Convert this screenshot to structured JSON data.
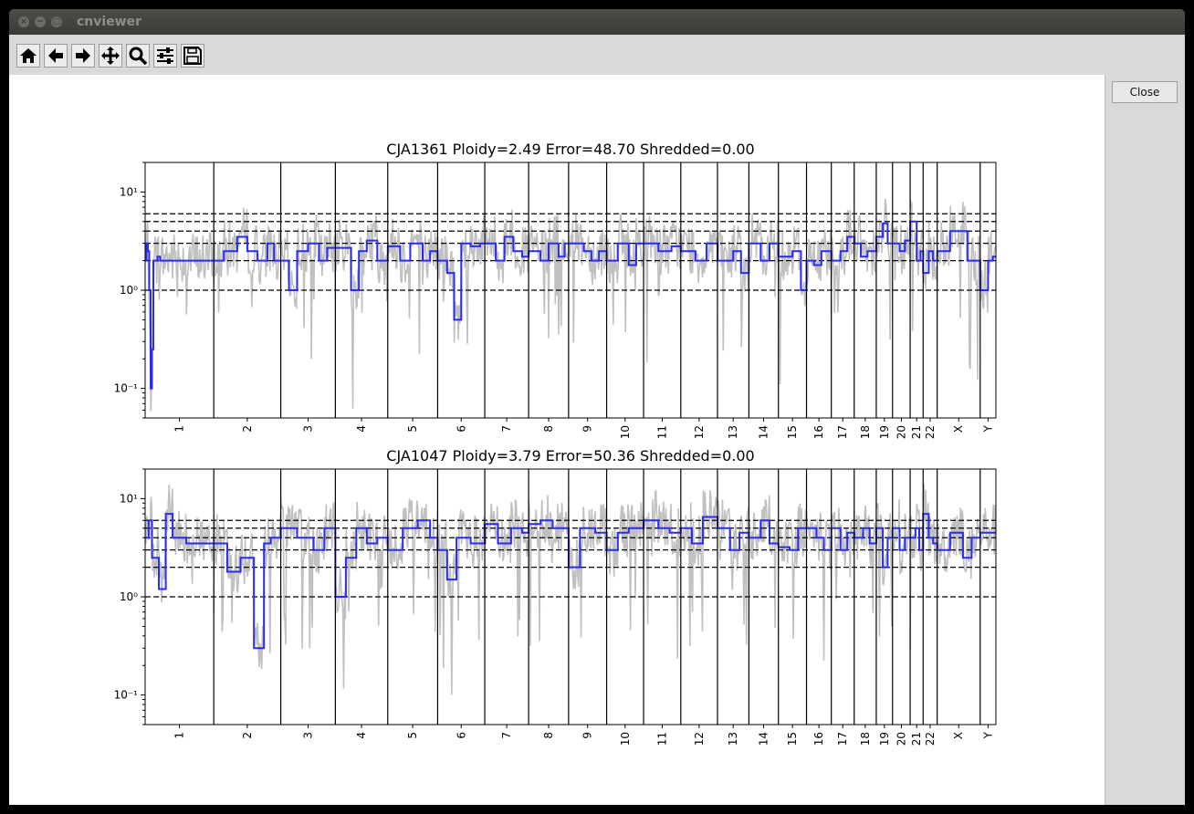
{
  "window": {
    "title": "cnviewer",
    "controls": [
      "close-icon",
      "minimize-icon",
      "maximize-icon"
    ]
  },
  "toolbar": {
    "buttons": [
      {
        "name": "home",
        "icon": "home-icon"
      },
      {
        "name": "back",
        "icon": "arrow-left-icon"
      },
      {
        "name": "forward",
        "icon": "arrow-right-icon"
      },
      {
        "name": "pan",
        "icon": "move-icon"
      },
      {
        "name": "zoom",
        "icon": "magnifier-icon"
      },
      {
        "name": "configure-subplots",
        "icon": "sliders-icon"
      },
      {
        "name": "save",
        "icon": "floppy-disk-icon"
      }
    ]
  },
  "side_panel": {
    "close_label": "Close"
  },
  "colors": {
    "segment": "#2b2bf0",
    "raw": "#c0c0c0",
    "axes": "#000000"
  },
  "chart_data": [
    {
      "type": "line",
      "title": "CJA1361 Ploidy=2.49 Error=48.70 Shredded=0.00",
      "yscale": "log",
      "ylim": [
        0.05,
        20
      ],
      "yticks": [
        {
          "value": 10,
          "label": "10¹"
        },
        {
          "value": 1,
          "label": "10⁰"
        },
        {
          "value": 0.1,
          "label": "10⁻¹"
        }
      ],
      "reference_lines": [
        1,
        2,
        3,
        4,
        5,
        6
      ],
      "chromosome_labels": [
        "1",
        "2",
        "3",
        "4",
        "5",
        "6",
        "7",
        "8",
        "9",
        "10",
        "11",
        "12",
        "13",
        "14",
        "15",
        "16",
        "17",
        "18",
        "19",
        "20",
        "21",
        "22",
        "X",
        "Y"
      ],
      "chromosome_sizes": [
        249,
        243,
        198,
        190,
        181,
        171,
        159,
        145,
        138,
        134,
        135,
        133,
        114,
        107,
        102,
        90,
        83,
        80,
        59,
        64,
        47,
        51,
        156,
        57
      ],
      "segments": [
        [
          [
            0,
            2.0
          ],
          [
            2,
            3.0
          ],
          [
            4,
            2.5
          ],
          [
            6,
            1.0
          ],
          [
            8,
            0.1
          ],
          [
            10,
            0.25
          ],
          [
            12,
            2.0
          ],
          [
            18,
            2.2
          ],
          [
            22,
            2.0
          ]
        ],
        [
          [
            0,
            2.0
          ],
          [
            15,
            2.5
          ],
          [
            35,
            3.5
          ],
          [
            50,
            2.5
          ],
          [
            65,
            2.0
          ],
          [
            80,
            3.0
          ],
          [
            90,
            2.0
          ]
        ],
        [
          [
            0,
            2.0
          ],
          [
            15,
            1.0
          ],
          [
            30,
            2.5
          ],
          [
            50,
            3.0
          ],
          [
            70,
            2.0
          ],
          [
            85,
            2.7
          ]
        ],
        [
          [
            0,
            2.7
          ],
          [
            30,
            1.0
          ],
          [
            45,
            2.5
          ],
          [
            60,
            3.2
          ],
          [
            80,
            2.0
          ]
        ],
        [
          [
            0,
            2.8
          ],
          [
            25,
            2.0
          ],
          [
            45,
            3.0
          ],
          [
            70,
            2.0
          ],
          [
            85,
            2.5
          ]
        ],
        [
          [
            0,
            2.0
          ],
          [
            20,
            1.5
          ],
          [
            35,
            0.5
          ],
          [
            50,
            3.0
          ],
          [
            70,
            2.8
          ],
          [
            90,
            3.0
          ]
        ],
        [
          [
            0,
            3.0
          ],
          [
            25,
            2.0
          ],
          [
            45,
            3.5
          ],
          [
            65,
            2.5
          ],
          [
            85,
            2.2
          ]
        ],
        [
          [
            0,
            2.5
          ],
          [
            30,
            2.0
          ],
          [
            50,
            3.0
          ],
          [
            75,
            2.2
          ],
          [
            90,
            3.0
          ]
        ],
        [
          [
            0,
            3.0
          ],
          [
            40,
            2.5
          ],
          [
            60,
            2.0
          ],
          [
            80,
            2.5
          ]
        ],
        [
          [
            0,
            2.0
          ],
          [
            30,
            3.0
          ],
          [
            60,
            1.8
          ],
          [
            80,
            3.0
          ]
        ],
        [
          [
            0,
            3.0
          ],
          [
            40,
            2.5
          ],
          [
            75,
            2.8
          ]
        ],
        [
          [
            0,
            2.5
          ],
          [
            40,
            2.0
          ],
          [
            70,
            3.0
          ]
        ],
        [
          [
            0,
            2.0
          ],
          [
            50,
            2.5
          ],
          [
            75,
            1.5
          ]
        ],
        [
          [
            0,
            3.0
          ],
          [
            40,
            2.0
          ],
          [
            70,
            3.0
          ]
        ],
        [
          [
            0,
            2.2
          ],
          [
            50,
            2.5
          ],
          [
            80,
            1.0
          ]
        ],
        [
          [
            0,
            2.0
          ],
          [
            30,
            1.8
          ],
          [
            60,
            2.5
          ]
        ],
        [
          [
            0,
            2.0
          ],
          [
            40,
            2.5
          ],
          [
            70,
            3.5
          ]
        ],
        [
          [
            0,
            3.0
          ],
          [
            30,
            2.2
          ],
          [
            60,
            2.5
          ]
        ],
        [
          [
            0,
            3.5
          ],
          [
            40,
            4.8
          ],
          [
            70,
            3.0
          ]
        ],
        [
          [
            0,
            3.0
          ],
          [
            40,
            2.5
          ],
          [
            70,
            3.2
          ]
        ],
        [
          [
            0,
            5.0
          ],
          [
            50,
            2.0
          ],
          [
            80,
            2.5
          ]
        ],
        [
          [
            0,
            1.5
          ],
          [
            40,
            2.5
          ],
          [
            70,
            2.0
          ]
        ],
        [
          [
            0,
            2.5
          ],
          [
            30,
            4.0
          ],
          [
            70,
            2.0
          ]
        ],
        [
          [
            0,
            1.0
          ],
          [
            50,
            2.0
          ],
          [
            80,
            2.2
          ]
        ]
      ]
    },
    {
      "type": "line",
      "title": "CJA1047 Ploidy=3.79 Error=50.36 Shredded=0.00",
      "yscale": "log",
      "ylim": [
        0.05,
        20
      ],
      "yticks": [
        {
          "value": 10,
          "label": "10¹"
        },
        {
          "value": 1,
          "label": "10⁰"
        },
        {
          "value": 0.1,
          "label": "10⁻¹"
        }
      ],
      "reference_lines": [
        1,
        2,
        3,
        4,
        5,
        6
      ],
      "chromosome_labels": [
        "1",
        "2",
        "3",
        "4",
        "5",
        "6",
        "7",
        "8",
        "9",
        "10",
        "11",
        "12",
        "13",
        "14",
        "15",
        "16",
        "17",
        "18",
        "19",
        "20",
        "21",
        "22",
        "X",
        "Y"
      ],
      "chromosome_sizes": [
        249,
        243,
        198,
        190,
        181,
        171,
        159,
        145,
        138,
        134,
        135,
        133,
        114,
        107,
        102,
        90,
        83,
        80,
        59,
        64,
        47,
        51,
        156,
        57
      ],
      "segments": [
        [
          [
            0,
            4.0
          ],
          [
            5,
            6.0
          ],
          [
            10,
            2.5
          ],
          [
            20,
            1.2
          ],
          [
            30,
            7.0
          ],
          [
            40,
            4.0
          ],
          [
            60,
            3.5
          ]
        ],
        [
          [
            0,
            3.5
          ],
          [
            20,
            1.8
          ],
          [
            40,
            2.5
          ],
          [
            60,
            0.3
          ],
          [
            75,
            3.5
          ],
          [
            85,
            4.0
          ]
        ],
        [
          [
            0,
            5.0
          ],
          [
            30,
            4.0
          ],
          [
            60,
            3.0
          ],
          [
            80,
            5.0
          ]
        ],
        [
          [
            0,
            1.0
          ],
          [
            20,
            2.5
          ],
          [
            40,
            5.0
          ],
          [
            60,
            3.5
          ],
          [
            80,
            4.0
          ]
        ],
        [
          [
            0,
            3.0
          ],
          [
            30,
            5.0
          ],
          [
            60,
            6.0
          ],
          [
            85,
            4.0
          ]
        ],
        [
          [
            0,
            3.0
          ],
          [
            20,
            1.5
          ],
          [
            40,
            4.0
          ],
          [
            70,
            3.5
          ]
        ],
        [
          [
            0,
            5.5
          ],
          [
            30,
            3.5
          ],
          [
            60,
            5.0
          ],
          [
            85,
            4.5
          ]
        ],
        [
          [
            0,
            5.5
          ],
          [
            30,
            6.0
          ],
          [
            60,
            5.0
          ]
        ],
        [
          [
            0,
            2.0
          ],
          [
            30,
            5.0
          ],
          [
            70,
            4.5
          ]
        ],
        [
          [
            0,
            3.0
          ],
          [
            30,
            4.5
          ],
          [
            60,
            5.0
          ]
        ],
        [
          [
            0,
            6.0
          ],
          [
            40,
            5.0
          ],
          [
            70,
            4.5
          ]
        ],
        [
          [
            0,
            5.0
          ],
          [
            30,
            3.5
          ],
          [
            60,
            6.5
          ]
        ],
        [
          [
            0,
            5.0
          ],
          [
            40,
            3.0
          ],
          [
            70,
            4.5
          ]
        ],
        [
          [
            0,
            4.0
          ],
          [
            40,
            6.0
          ],
          [
            70,
            3.5
          ]
        ],
        [
          [
            0,
            3.2
          ],
          [
            40,
            3.0
          ],
          [
            70,
            5.0
          ]
        ],
        [
          [
            0,
            5.0
          ],
          [
            40,
            4.0
          ],
          [
            70,
            3.0
          ]
        ],
        [
          [
            0,
            5.0
          ],
          [
            40,
            3.0
          ],
          [
            70,
            4.5
          ]
        ],
        [
          [
            0,
            4.0
          ],
          [
            40,
            5.0
          ],
          [
            70,
            3.5
          ]
        ],
        [
          [
            0,
            5.0
          ],
          [
            40,
            2.0
          ],
          [
            70,
            4.0
          ]
        ],
        [
          [
            0,
            5.0
          ],
          [
            40,
            3.0
          ],
          [
            70,
            4.0
          ]
        ],
        [
          [
            0,
            4.0
          ],
          [
            40,
            5.0
          ],
          [
            70,
            3.0
          ]
        ],
        [
          [
            0,
            7.0
          ],
          [
            40,
            4.0
          ],
          [
            70,
            3.5
          ]
        ],
        [
          [
            0,
            3.0
          ],
          [
            30,
            4.5
          ],
          [
            60,
            2.5
          ],
          [
            80,
            4.0
          ]
        ],
        [
          [
            0,
            4.5
          ],
          [
            50,
            4.5
          ],
          [
            80,
            4.5
          ]
        ]
      ]
    }
  ]
}
